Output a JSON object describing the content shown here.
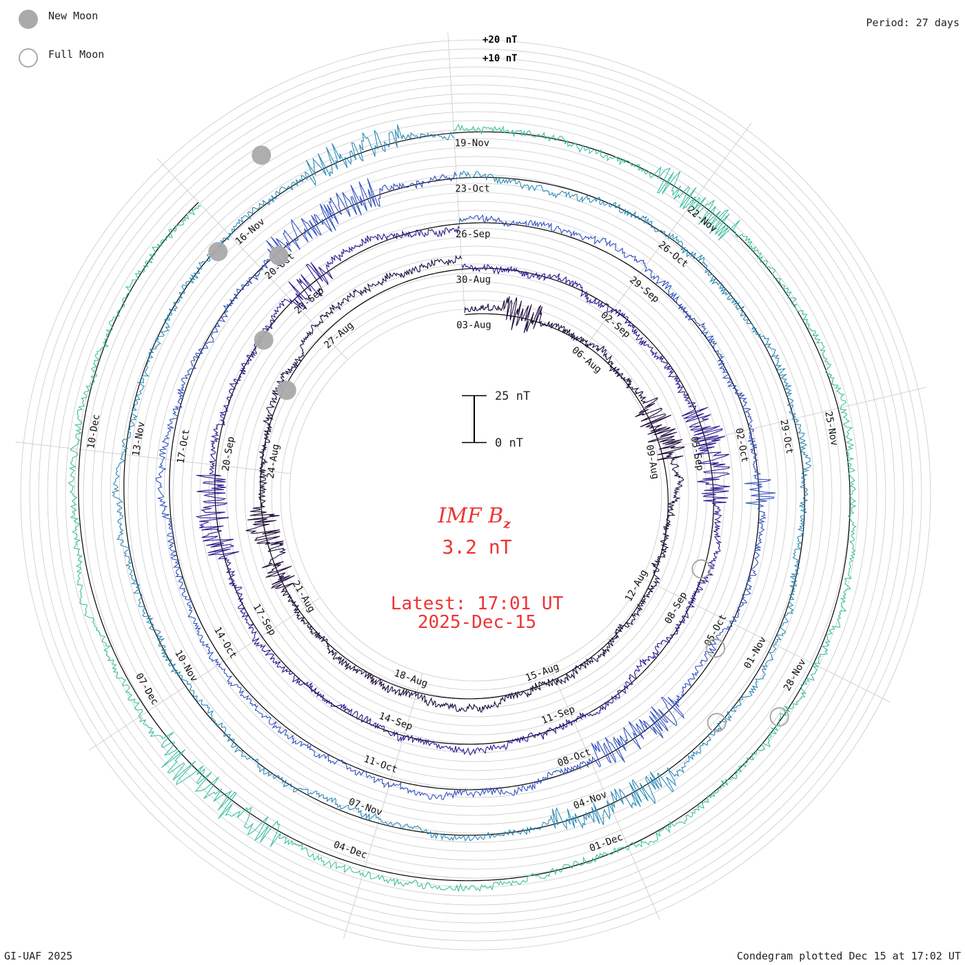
{
  "legend": {
    "new_moon_label": "New Moon",
    "full_moon_label": "Full Moon"
  },
  "header": {
    "period": "Period: 27 days"
  },
  "footer": {
    "credit": "GI-UAF 2025",
    "plotted": "Condegram plotted Dec 15 at 17:02 UT"
  },
  "chart_data": {
    "type": "condegram-spiral",
    "title_main": "IMF B",
    "title_sub": "z",
    "current_value": "3.2 nT",
    "latest_time": "Latest: 17:01 UT",
    "latest_date": "2025-Dec-15",
    "scale_bar": {
      "top_label": "25 nT",
      "bottom_label": "0 nT",
      "range_nT": [
        0,
        25
      ]
    },
    "ring_scale_labels": [
      "+20 nT",
      "+10 nT"
    ],
    "period_days": 27,
    "start_date": "2025-08-03",
    "end_date": "2025-12-15",
    "series_colors": [
      "#1a0a3a",
      "#2a1890",
      "#3050c0",
      "#2a8ab8",
      "#3ac0a0",
      "#7ec038",
      "#b8b020",
      "#c08010",
      "#c04010",
      "#c02010"
    ],
    "date_labels": [
      "03-Aug",
      "06-Aug",
      "09-Aug",
      "12-Aug",
      "15-Aug",
      "18-Aug",
      "21-Aug",
      "24-Aug",
      "27-Aug",
      "30-Aug",
      "02-Sep",
      "05-Sep",
      "08-Sep",
      "11-Sep",
      "14-Sep",
      "17-Sep",
      "20-Sep",
      "23-Sep",
      "26-Sep",
      "29-Sep",
      "02-Oct",
      "05-Oct",
      "08-Oct",
      "11-Oct",
      "14-Oct",
      "17-Oct",
      "20-Oct",
      "23-Oct",
      "26-Oct",
      "29-Oct",
      "01-Nov",
      "04-Nov",
      "07-Nov",
      "10-Nov",
      "13-Nov",
      "16-Nov",
      "19-Nov",
      "22-Nov",
      "25-Nov",
      "28-Nov",
      "01-Dec",
      "04-Dec",
      "07-Dec",
      "10-Dec"
    ],
    "new_moon_fractions": [
      0.84,
      1.86,
      2.9,
      3.88,
      4.92
    ],
    "full_moon_fractions": [
      1.31,
      2.35,
      3.38,
      4.36
    ]
  }
}
